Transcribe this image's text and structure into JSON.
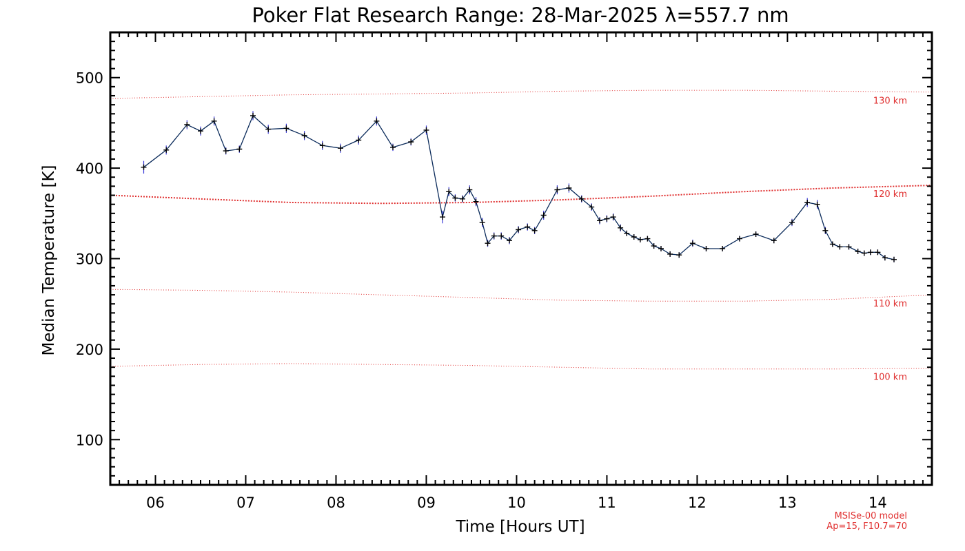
{
  "chart_data": {
    "type": "line",
    "title": "Poker Flat Research Range: 28-Mar-2025 λ=557.7 nm",
    "xlabel": "Time [Hours UT]",
    "ylabel": "Median Temperature [K]",
    "xlim": [
      5.5,
      14.6
    ],
    "ylim": [
      50,
      550
    ],
    "x_ticks": [
      6,
      7,
      8,
      9,
      10,
      11,
      12,
      13,
      14
    ],
    "x_tick_labels": [
      "06",
      "07",
      "08",
      "09",
      "10",
      "11",
      "12",
      "13",
      "14"
    ],
    "y_ticks": [
      100,
      200,
      300,
      400,
      500
    ],
    "y_tick_labels": [
      "100",
      "200",
      "300",
      "400",
      "500"
    ],
    "grid": false,
    "colors": {
      "measurement": "#0a2a5a",
      "model": "#e03030",
      "axes": "#000000"
    },
    "series": [
      {
        "marker": "plus",
        "x": [
          5.87,
          6.12,
          6.35,
          6.5,
          6.65,
          6.78,
          6.93,
          7.08,
          7.25,
          7.45,
          7.65,
          7.85,
          8.05,
          8.25,
          8.45,
          8.63,
          8.83,
          9.0,
          9.18,
          9.25,
          9.32,
          9.4,
          9.48,
          9.55,
          9.62,
          9.68,
          9.75,
          9.83,
          9.92,
          10.02,
          10.12,
          10.2,
          10.3,
          10.45,
          10.58,
          10.72,
          10.83,
          10.92,
          11.0,
          11.07,
          11.15,
          11.22,
          11.3,
          11.37,
          11.45,
          11.52,
          11.6,
          11.7,
          11.8,
          11.95,
          12.1,
          12.28,
          12.47,
          12.65,
          12.85,
          13.05,
          13.22,
          13.33,
          13.42,
          13.5,
          13.58,
          13.68,
          13.78,
          13.85,
          13.92,
          14.0,
          14.08,
          14.18
        ],
        "y": [
          401,
          420,
          448,
          441,
          452,
          419,
          421,
          458,
          443,
          444,
          436,
          425,
          422,
          431,
          452,
          423,
          429,
          442,
          346,
          374,
          367,
          366,
          376,
          363,
          340,
          317,
          325,
          325,
          320,
          332,
          335,
          331,
          348,
          376,
          378,
          366,
          357,
          342,
          344,
          346,
          334,
          328,
          324,
          321,
          322,
          314,
          311,
          305,
          304,
          317,
          311,
          311,
          322,
          327,
          320,
          340,
          362,
          360,
          331,
          316,
          313,
          313,
          308,
          306,
          307,
          307,
          301,
          299
        ],
        "error": [
          7,
          5,
          5,
          5,
          5,
          4,
          4,
          5,
          5,
          5,
          5,
          5,
          5,
          5,
          5,
          4,
          4,
          5,
          7,
          5,
          4,
          4,
          5,
          5,
          5,
          4,
          4,
          4,
          4,
          4,
          4,
          4,
          5,
          5,
          5,
          4,
          4,
          4,
          4,
          4,
          4,
          3,
          3,
          3,
          3,
          3,
          3,
          3,
          3,
          4,
          3,
          3,
          3,
          3,
          3,
          4,
          5,
          5,
          4,
          3,
          3,
          3,
          3,
          3,
          3,
          3,
          3,
          3
        ]
      }
    ],
    "model_curves": [
      {
        "label": "130 km",
        "style": "dotted",
        "x": [
          5.5,
          6.5,
          7.5,
          8.5,
          9.5,
          10.5,
          11.5,
          12.5,
          13.5,
          14.6
        ],
        "y": [
          477,
          479,
          481,
          482,
          483,
          485,
          486,
          486,
          485,
          484
        ]
      },
      {
        "label": "120 km",
        "style": "dotted-bold",
        "x": [
          5.5,
          6.5,
          7.5,
          8.5,
          9.5,
          10.5,
          11.5,
          12.5,
          13.5,
          14.6
        ],
        "y": [
          370,
          366,
          362,
          361,
          362,
          365,
          369,
          374,
          378,
          381
        ]
      },
      {
        "label": "110 km",
        "style": "dotted",
        "x": [
          5.5,
          6.5,
          7.5,
          8.5,
          9.5,
          10.5,
          11.5,
          12.5,
          13.5,
          14.6
        ],
        "y": [
          266,
          265,
          263,
          260,
          257,
          254,
          253,
          253,
          255,
          260
        ]
      },
      {
        "label": "100 km",
        "style": "dotted",
        "x": [
          5.5,
          6.5,
          7.5,
          8.5,
          9.5,
          10.5,
          11.5,
          12.5,
          13.5,
          14.6
        ],
        "y": [
          181,
          183,
          184,
          183,
          182,
          180,
          178,
          178,
          178,
          179
        ]
      }
    ],
    "annotations": {
      "model_name": "MSISe-00 model",
      "model_params": "Ap=15, F10.7=70"
    }
  }
}
